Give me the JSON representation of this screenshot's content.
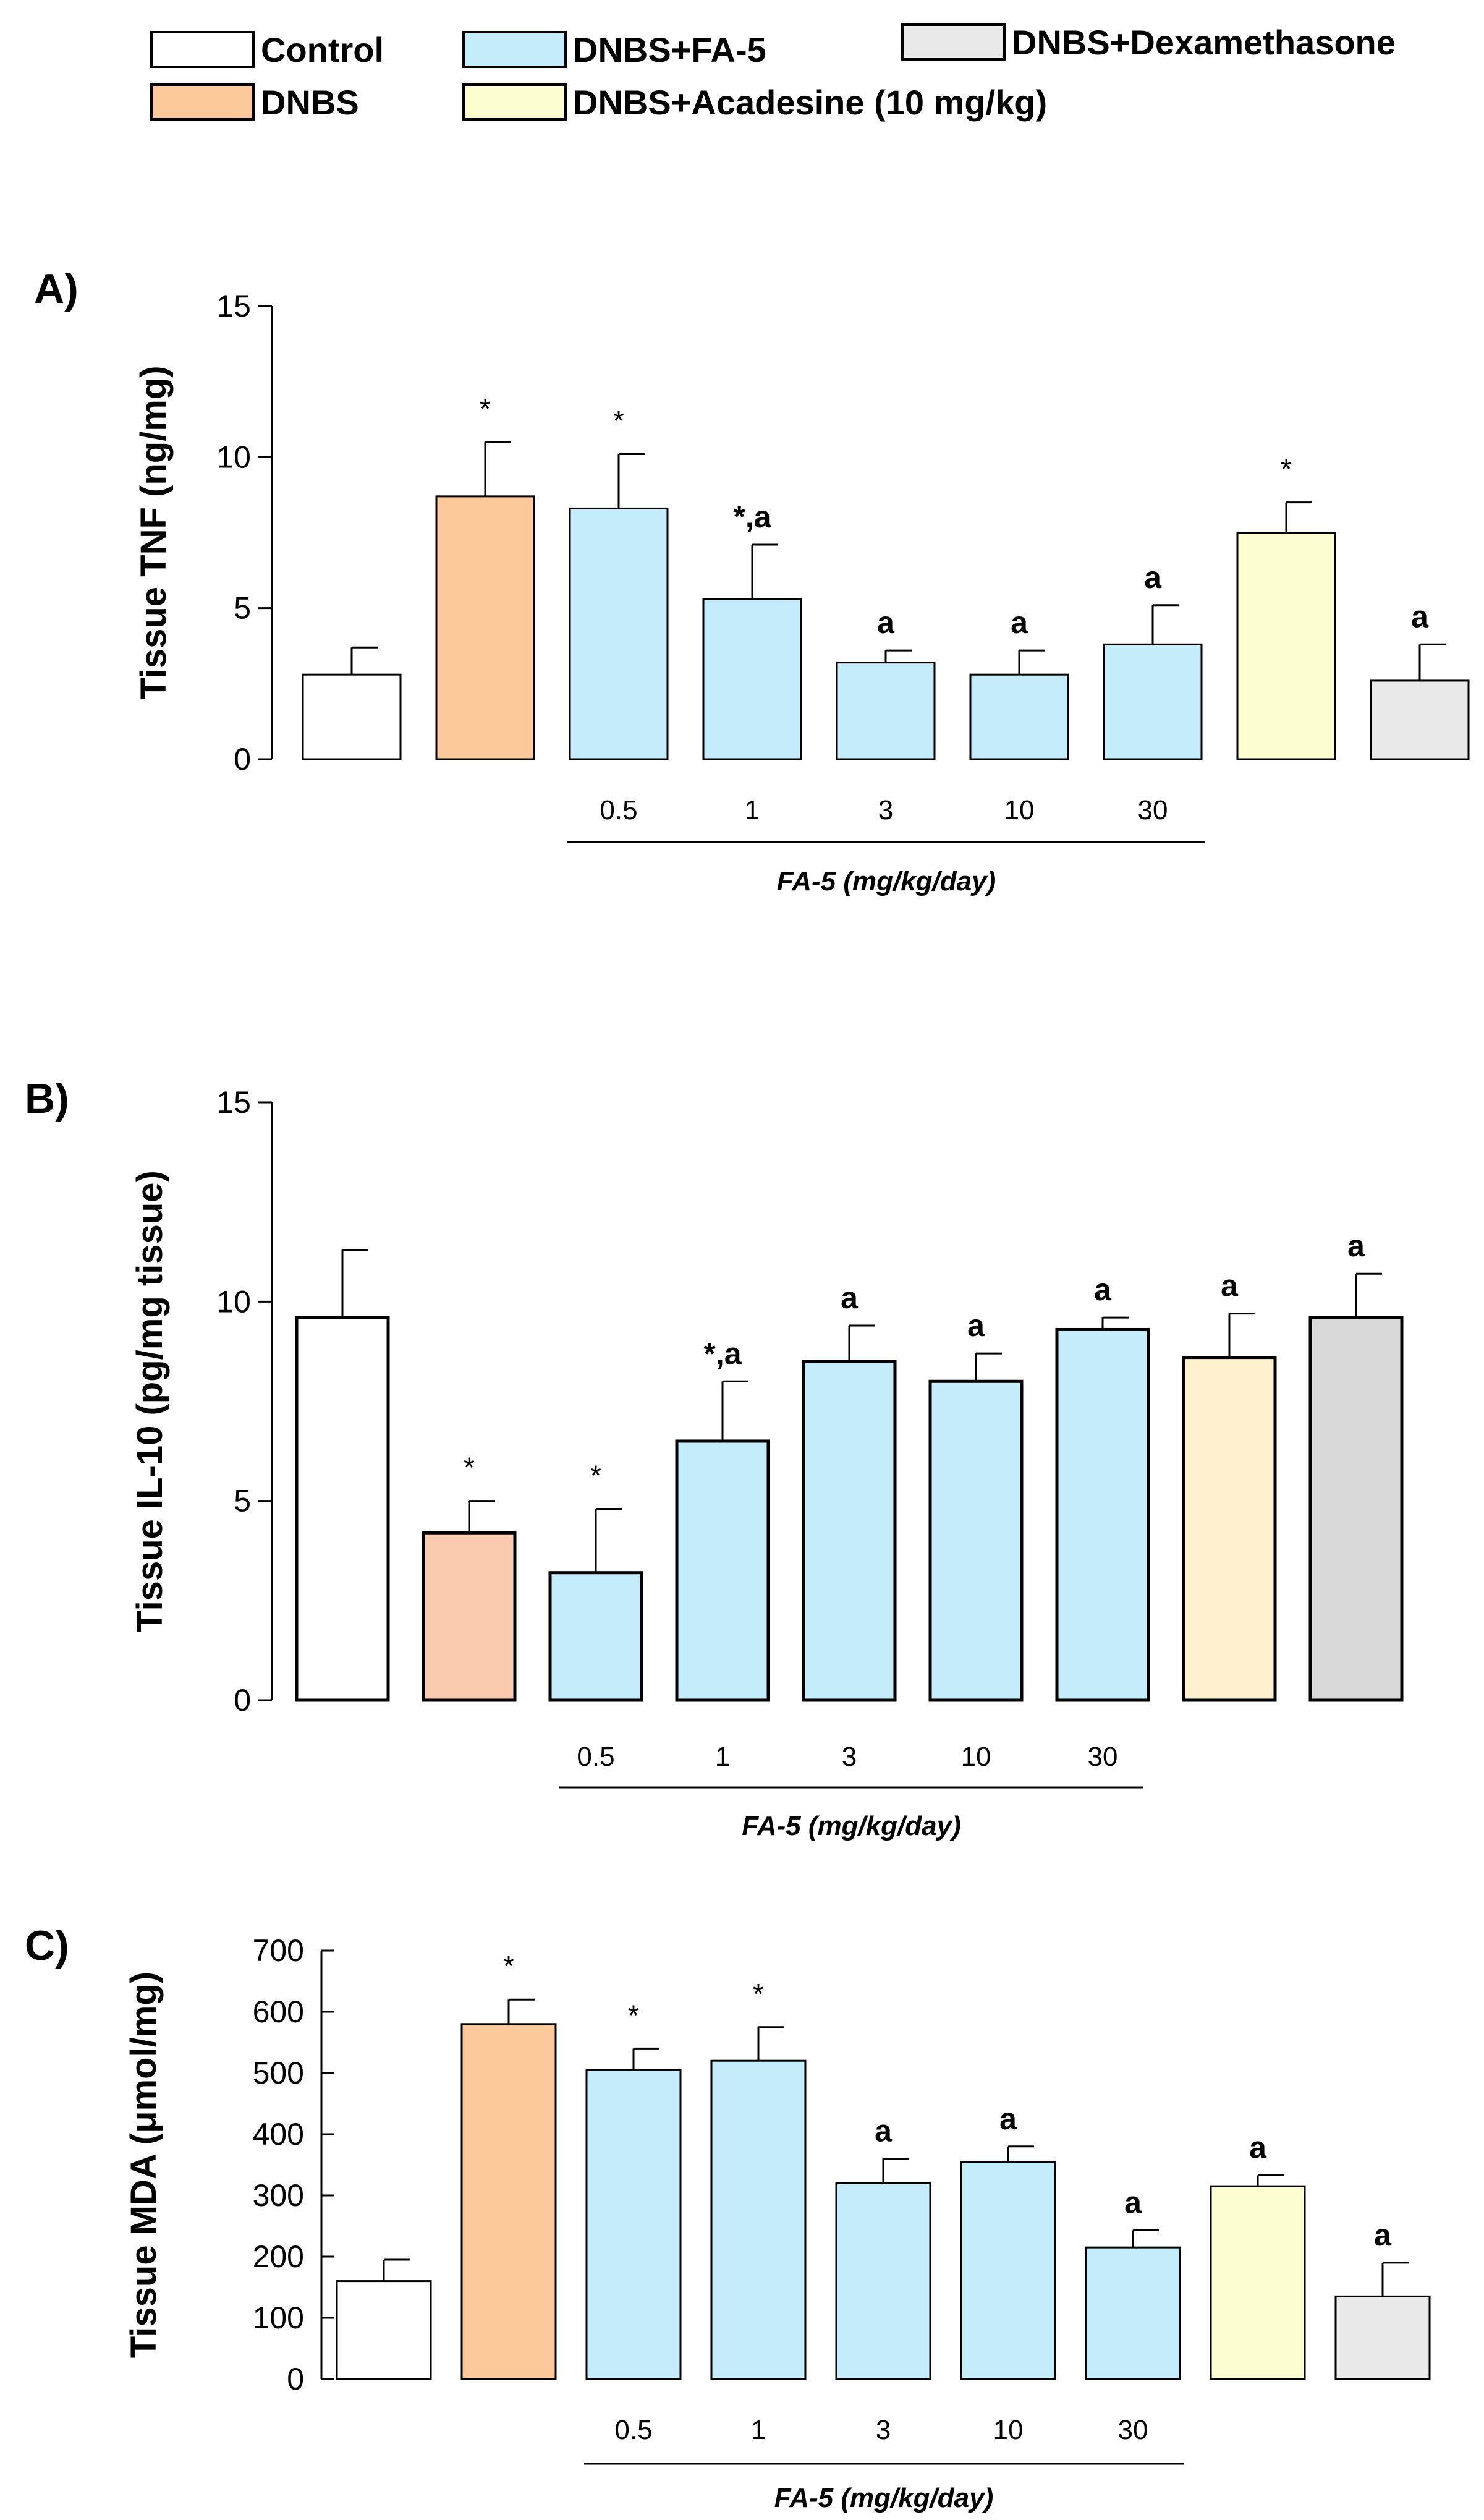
{
  "legend": [
    {
      "label": "Control",
      "color": "#ffffff"
    },
    {
      "label": "DNBS",
      "color": "#fbc99a"
    },
    {
      "label": "DNBS+FA-5",
      "color": "#c5ecfb"
    },
    {
      "label": "DNBS+Acadesine (10 mg/kg)",
      "color": "#fdfdd2"
    },
    {
      "label": "DNBS+Dexamethasone",
      "color": "#e9e9e9"
    }
  ],
  "chart_data": [
    {
      "type": "bar",
      "panel": "A)",
      "ylabel": "Tissue TNF (ng/mg)",
      "ylim": [
        0,
        15
      ],
      "yticks": [
        "0",
        "5",
        "10",
        "15"
      ],
      "categories": [
        "Control",
        "DNBS",
        "DNBS+FA-5 0.5",
        "DNBS+FA-5 1",
        "DNBS+FA-5 3",
        "DNBS+FA-5 10",
        "DNBS+FA-5 30",
        "DNBS+Acadesine (10 mg/kg)",
        "DNBS+Dexamethasone"
      ],
      "values": [
        2.8,
        8.7,
        8.3,
        5.3,
        3.2,
        2.8,
        3.8,
        7.5,
        2.6
      ],
      "errors": [
        0.9,
        1.8,
        1.8,
        1.8,
        0.4,
        0.8,
        1.3,
        1.0,
        1.2
      ],
      "annotations": [
        "",
        "*",
        "*",
        "*,a",
        "a",
        "a",
        "a",
        "*",
        "a"
      ],
      "colors": [
        "#ffffff",
        "#fbc99a",
        "#c5ecfb",
        "#c5ecfb",
        "#c5ecfb",
        "#c5ecfb",
        "#c5ecfb",
        "#fdfdd2",
        "#e9e9e9"
      ],
      "dose_labels": [
        "0.5",
        "1",
        "3",
        "10",
        "30"
      ],
      "group_label": "FA-5 (mg/kg/day)"
    },
    {
      "type": "bar",
      "panel": "B)",
      "ylabel": "Tissue IL-10 (pg/mg tissue)",
      "ylim": [
        0,
        15
      ],
      "yticks": [
        "0",
        "5",
        "10",
        "15"
      ],
      "categories": [
        "Control",
        "DNBS",
        "DNBS+FA-5 0.5",
        "DNBS+FA-5 1",
        "DNBS+FA-5 3",
        "DNBS+FA-5 10",
        "DNBS+FA-5 30",
        "DNBS+Acadesine (10 mg/kg)",
        "DNBS+Dexamethasone"
      ],
      "values": [
        9.6,
        4.2,
        3.2,
        6.5,
        8.5,
        8.0,
        9.3,
        8.6,
        9.6
      ],
      "errors": [
        1.7,
        0.8,
        1.6,
        1.5,
        0.9,
        0.7,
        0.3,
        1.1,
        1.1
      ],
      "annotations": [
        "",
        "*",
        "*",
        "*,a",
        "a",
        "a",
        "a",
        "a",
        "a"
      ],
      "colors": [
        "#ffffff",
        "#fbcbb0",
        "#c5ecfb",
        "#c5ecfb",
        "#c5ecfb",
        "#c5ecfb",
        "#c5ecfb",
        "#fdf1cf",
        "#d9d9d9"
      ],
      "dose_labels": [
        "0.5",
        "1",
        "3",
        "10",
        "30"
      ],
      "group_label": "FA-5 (mg/kg/day)"
    },
    {
      "type": "bar",
      "panel": "C)",
      "ylabel": "Tissue MDA (μmol/mg)",
      "ylim": [
        0,
        700
      ],
      "yticks": [
        "0",
        "100",
        "200",
        "300",
        "400",
        "500",
        "600",
        "700"
      ],
      "categories": [
        "Control",
        "DNBS",
        "DNBS+FA-5 0.5",
        "DNBS+FA-5 1",
        "DNBS+FA-5 3",
        "DNBS+FA-5 10",
        "DNBS+FA-5 30",
        "DNBS+Acadesine (10 mg/kg)",
        "DNBS+Dexamethasone"
      ],
      "values": [
        160,
        580,
        505,
        520,
        320,
        355,
        215,
        315,
        135
      ],
      "errors": [
        35,
        40,
        35,
        55,
        40,
        25,
        28,
        18,
        55
      ],
      "annotations": [
        "",
        "*",
        "*",
        "*",
        "a",
        "a",
        "a",
        "a",
        "a"
      ],
      "colors": [
        "#ffffff",
        "#fbc99a",
        "#c5ecfb",
        "#c5ecfb",
        "#c5ecfb",
        "#c5ecfb",
        "#c5ecfb",
        "#fdfdd2",
        "#e9e9e9"
      ],
      "dose_labels": [
        "0.5",
        "1",
        "3",
        "10",
        "30"
      ],
      "group_label": "FA-5 (mg/kg/day)"
    }
  ]
}
